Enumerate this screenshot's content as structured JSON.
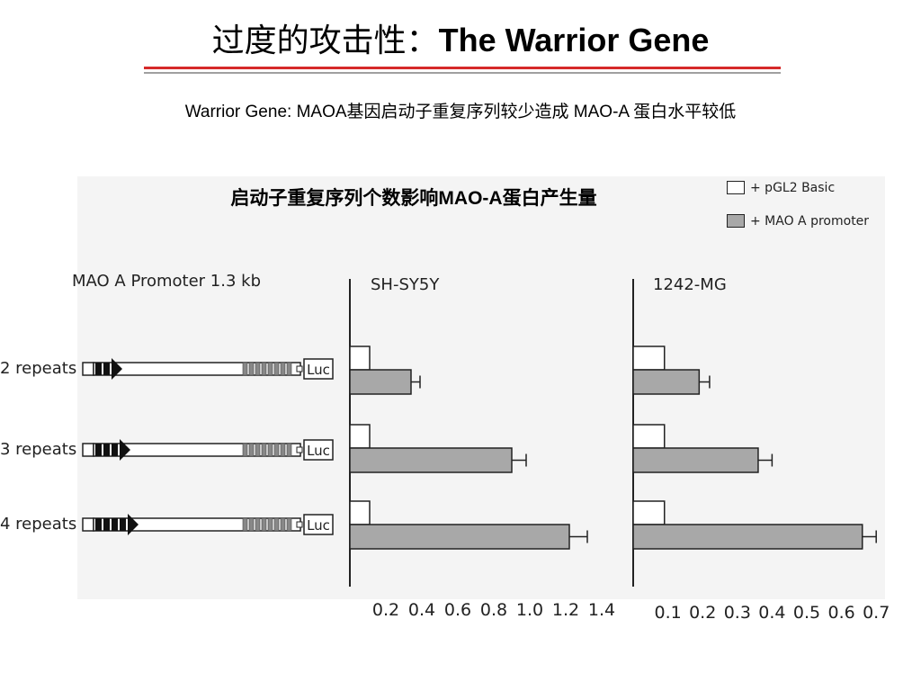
{
  "slide": {
    "title_cn": "过度的攻击性：",
    "title_en": "The Warrior Gene",
    "subtitle": "Warrior  Gene: MAOA基因启动子重复序列较少造成 MAO-A 蛋白水平较低",
    "figure_title": "启动子重复序列个数影响MAO-A蛋白产生量"
  },
  "colors": {
    "title_rule_red": "#d62a2a",
    "title_rule_gray": "#a0a0a0",
    "basic_fill": "#ffffff",
    "promoter_fill": "#a8a8a8",
    "axis": "#222222"
  },
  "promoter_diagram": {
    "header": "MAO A Promoter 1.3 kb",
    "reporter_label": "Luc",
    "rows": [
      {
        "label": "2 repeats",
        "repeats": 2
      },
      {
        "label": "3 repeats",
        "repeats": 3
      },
      {
        "label": "4 repeats",
        "repeats": 4
      }
    ]
  },
  "legend": [
    {
      "label": "+ pGL2 Basic",
      "swatch_color": "#ffffff"
    },
    {
      "label": "+ MAO A promoter",
      "swatch_color": "#a8a8a8"
    }
  ],
  "chart_data": [
    {
      "type": "bar",
      "orientation": "horizontal",
      "title": "SH-SY5Y",
      "categories": [
        "2 repeats",
        "3 repeats",
        "4 repeats"
      ],
      "series": [
        {
          "name": "+ pGL2 Basic",
          "values": [
            0.11,
            0.11,
            0.11
          ]
        },
        {
          "name": "+ MAO A promoter",
          "values": [
            0.34,
            0.9,
            1.22
          ],
          "error": [
            0.05,
            0.08,
            0.1
          ]
        }
      ],
      "xlim": [
        0,
        1.4
      ],
      "xticks": [
        0.2,
        0.4,
        0.6,
        0.8,
        1.0,
        1.2,
        1.4
      ],
      "xtick_labels": [
        "0.2",
        "0.4",
        "0.6",
        "0.8",
        "1.0",
        "1.2",
        "1.4"
      ],
      "xlabel": "",
      "ylabel": "",
      "grid": false
    },
    {
      "type": "bar",
      "orientation": "horizontal",
      "title": "1242-MG",
      "categories": [
        "2 repeats",
        "3 repeats",
        "4 repeats"
      ],
      "series": [
        {
          "name": "+ pGL2 Basic",
          "values": [
            0.09,
            0.09,
            0.09
          ]
        },
        {
          "name": "+ MAO A promoter",
          "values": [
            0.19,
            0.36,
            0.66
          ],
          "error": [
            0.03,
            0.04,
            0.04
          ]
        }
      ],
      "xlim": [
        0,
        0.7
      ],
      "xticks": [
        0.1,
        0.2,
        0.3,
        0.4,
        0.5,
        0.6,
        0.7
      ],
      "xtick_labels": [
        "0.1",
        "0.2",
        "0.3",
        "0.4",
        "0.5",
        "0.6",
        "0.7"
      ],
      "xlabel": "",
      "ylabel": "",
      "grid": false
    }
  ]
}
